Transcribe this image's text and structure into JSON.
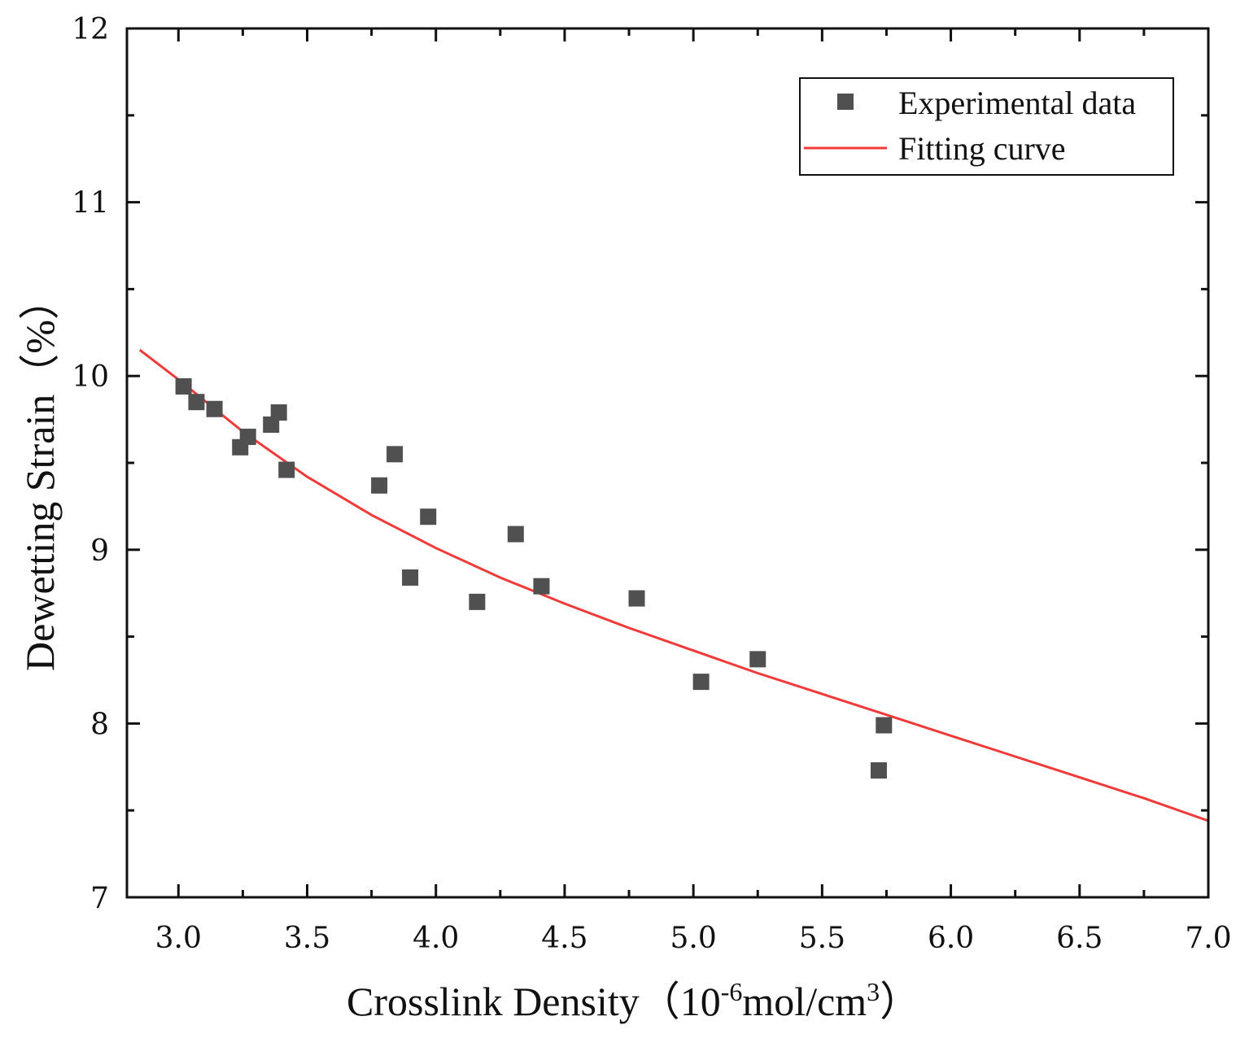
{
  "chart_data": {
    "type": "scatter",
    "title": "",
    "xlabel": "Crosslink Density（10",
    "xlabel_sup1": "-6",
    "xlabel_mid": "mol/cm",
    "xlabel_sup2": "3",
    "xlabel_end": "）",
    "ylabel": "Dewetting Strain（%）",
    "xlim": [
      2.8,
      7.0
    ],
    "ylim": [
      7,
      12
    ],
    "xticks": [
      "3.0",
      "3.5",
      "4.0",
      "4.5",
      "5.0",
      "5.5",
      "6.0",
      "6.5",
      "7.0"
    ],
    "xtick_values": [
      3.0,
      3.5,
      4.0,
      4.5,
      5.0,
      5.5,
      6.0,
      6.5,
      7.0
    ],
    "yticks": [
      "7",
      "8",
      "9",
      "10",
      "11",
      "12"
    ],
    "ytick_values": [
      7,
      8,
      9,
      10,
      11,
      12
    ],
    "legend_position": "top-right",
    "series": [
      {
        "name": "Experimental data",
        "kind": "scatter",
        "color": "#505050",
        "points": [
          [
            3.02,
            9.94
          ],
          [
            3.07,
            9.85
          ],
          [
            3.14,
            9.81
          ],
          [
            3.24,
            9.59
          ],
          [
            3.27,
            9.65
          ],
          [
            3.36,
            9.72
          ],
          [
            3.39,
            9.79
          ],
          [
            3.42,
            9.46
          ],
          [
            3.78,
            9.37
          ],
          [
            3.84,
            9.55
          ],
          [
            3.97,
            9.19
          ],
          [
            3.9,
            8.84
          ],
          [
            4.16,
            8.7
          ],
          [
            4.31,
            9.09
          ],
          [
            4.41,
            8.79
          ],
          [
            4.78,
            8.72
          ],
          [
            5.03,
            8.24
          ],
          [
            5.25,
            8.37
          ],
          [
            5.72,
            7.73
          ],
          [
            5.74,
            7.99
          ]
        ]
      },
      {
        "name": "Fitting curve",
        "kind": "line",
        "color": "#f03a3a",
        "points": [
          [
            2.85,
            10.15
          ],
          [
            3.0,
            9.98
          ],
          [
            3.25,
            9.68
          ],
          [
            3.5,
            9.42
          ],
          [
            3.75,
            9.2
          ],
          [
            4.0,
            9.01
          ],
          [
            4.25,
            8.84
          ],
          [
            4.5,
            8.69
          ],
          [
            4.75,
            8.55
          ],
          [
            5.0,
            8.42
          ],
          [
            5.25,
            8.29
          ],
          [
            5.5,
            8.17
          ],
          [
            5.75,
            8.05
          ],
          [
            6.0,
            7.93
          ],
          [
            6.25,
            7.81
          ],
          [
            6.5,
            7.69
          ],
          [
            6.75,
            7.57
          ],
          [
            7.0,
            7.44
          ]
        ]
      }
    ]
  }
}
